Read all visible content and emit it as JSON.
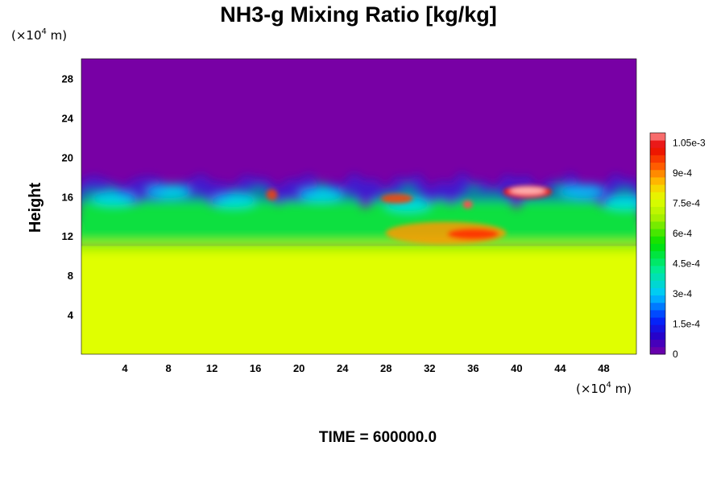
{
  "chart_data": {
    "type": "heatmap",
    "title": "NH3-g Mixing Ratio [kg/kg]",
    "ylabel": "Height",
    "x_unit_prefix": "(×10",
    "x_unit_exp": "4",
    "x_unit_suffix": " m)",
    "y_unit_prefix": "(×10",
    "y_unit_exp": "4",
    "y_unit_suffix": " m)",
    "xlim": [
      0,
      51
    ],
    "ylim": [
      0,
      30
    ],
    "x_ticks": [
      "4",
      "8",
      "12",
      "16",
      "20",
      "24",
      "28",
      "32",
      "36",
      "40",
      "44",
      "48"
    ],
    "y_ticks": [
      "4",
      "8",
      "12",
      "16",
      "20",
      "24",
      "28"
    ],
    "x_tick_values": [
      4,
      8,
      12,
      16,
      20,
      24,
      28,
      32,
      36,
      40,
      44,
      48
    ],
    "y_tick_values": [
      4,
      8,
      12,
      16,
      20,
      24,
      28
    ],
    "colorbar": {
      "min": 0,
      "max": 0.0011,
      "labels": [
        "0",
        "1.5e-4",
        "3e-4",
        "4.5e-4",
        "6e-4",
        "7.5e-4",
        "9e-4",
        "1.05e-3"
      ],
      "label_values": [
        0,
        0.00015,
        0.0003,
        0.00045,
        0.0006,
        0.00075,
        0.0009,
        0.00105
      ]
    },
    "field_summary": [
      {
        "region": "height 0-11",
        "value": 0.0008
      },
      {
        "region": "height 11-14",
        "value": 0.00055
      },
      {
        "region": "height 14-18",
        "value": 0.0004
      },
      {
        "region": "height 18-30",
        "value": 0.0
      }
    ],
    "time_label": "TIME = 600000.0"
  }
}
